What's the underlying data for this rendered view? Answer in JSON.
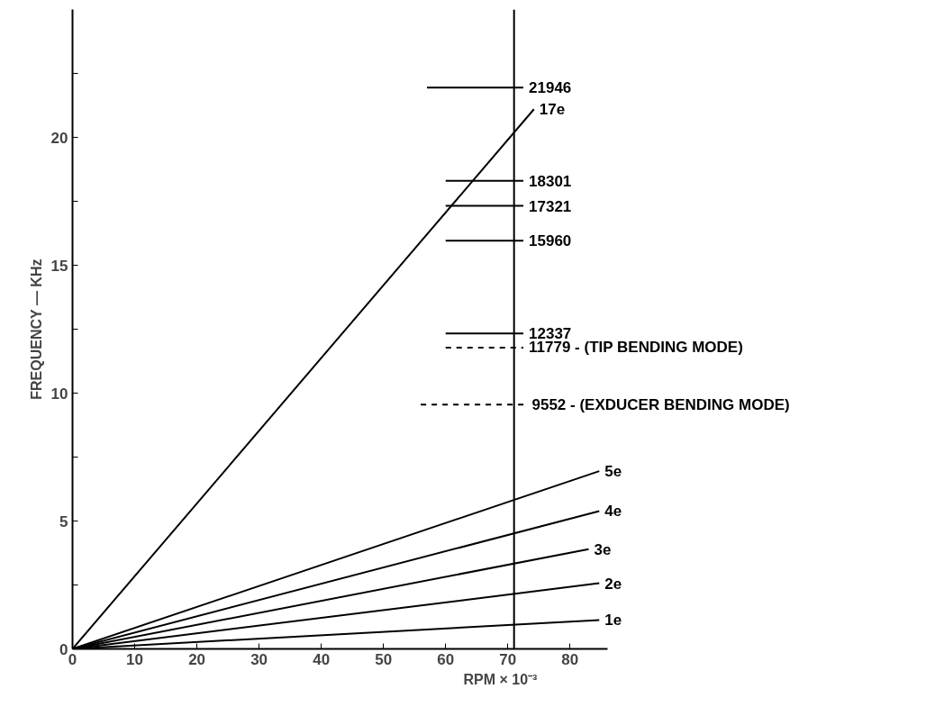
{
  "chart_data": {
    "type": "line",
    "xlabel": "RPM × 10⁻³",
    "ylabel": "FREQUENCY — KHz",
    "xlim": [
      0,
      86
    ],
    "ylim": [
      0,
      25
    ],
    "xticks": [
      0,
      10,
      20,
      30,
      40,
      50,
      60,
      70,
      80
    ],
    "yticks": [
      0,
      {
        "value": 2.5,
        "label": null
      },
      5,
      {
        "value": 7.5,
        "label": null
      },
      10,
      {
        "value": 12.5,
        "label": null
      },
      15,
      {
        "value": 17.5,
        "label": null
      },
      20,
      {
        "value": 22.5,
        "label": null
      }
    ],
    "grid": false,
    "marker": "none",
    "series": [
      {
        "name": "21946",
        "color": "#000000",
        "x": [
          57,
          72.5
        ],
        "values": [
          21.946,
          21.946
        ]
      },
      {
        "name": "17e",
        "color": "#000000",
        "x": [
          0,
          74.2
        ],
        "values": [
          0,
          21.1
        ]
      },
      {
        "name": "18301",
        "color": "#000000",
        "x": [
          60,
          72.5
        ],
        "values": [
          18.301,
          18.301
        ]
      },
      {
        "name": "17321",
        "color": "#000000",
        "x": [
          60,
          72.5
        ],
        "values": [
          17.321,
          17.321
        ]
      },
      {
        "name": "15960",
        "color": "#000000",
        "x": [
          60,
          72.5
        ],
        "values": [
          15.96,
          15.96
        ]
      },
      {
        "name": "12337",
        "color": "#000000",
        "x": [
          60,
          72.5
        ],
        "values": [
          12.337,
          12.337
        ]
      },
      {
        "name": "11779 - (TIP BENDING MODE)",
        "color": "#000000",
        "x": [
          60,
          72.5
        ],
        "values": [
          11.779,
          11.779
        ],
        "line_style": "dashed"
      },
      {
        "name": "9552 - (EXDUCER BENDING MODE)",
        "color": "#000000",
        "x": [
          56,
          73
        ],
        "values": [
          9.552,
          9.552
        ],
        "line_style": "dashed"
      },
      {
        "name": "5e",
        "color": "#000000",
        "x": [
          0,
          84.7
        ],
        "values": [
          0,
          6.95
        ]
      },
      {
        "name": "4e",
        "color": "#000000",
        "x": [
          0,
          84.7
        ],
        "values": [
          0,
          5.39
        ]
      },
      {
        "name": "3e",
        "color": "#000000",
        "x": [
          0,
          83
        ],
        "values": [
          0,
          3.9
        ]
      },
      {
        "name": "2e",
        "color": "#000000",
        "x": [
          0,
          84.7
        ],
        "values": [
          0,
          2.57
        ]
      },
      {
        "name": "1e",
        "color": "#000000",
        "x": [
          0,
          84.7
        ],
        "values": [
          0,
          1.13
        ]
      }
    ],
    "ref_lines": [
      {
        "axis": "x",
        "value": 71,
        "color": "#000000",
        "line_style": "solid"
      }
    ]
  }
}
